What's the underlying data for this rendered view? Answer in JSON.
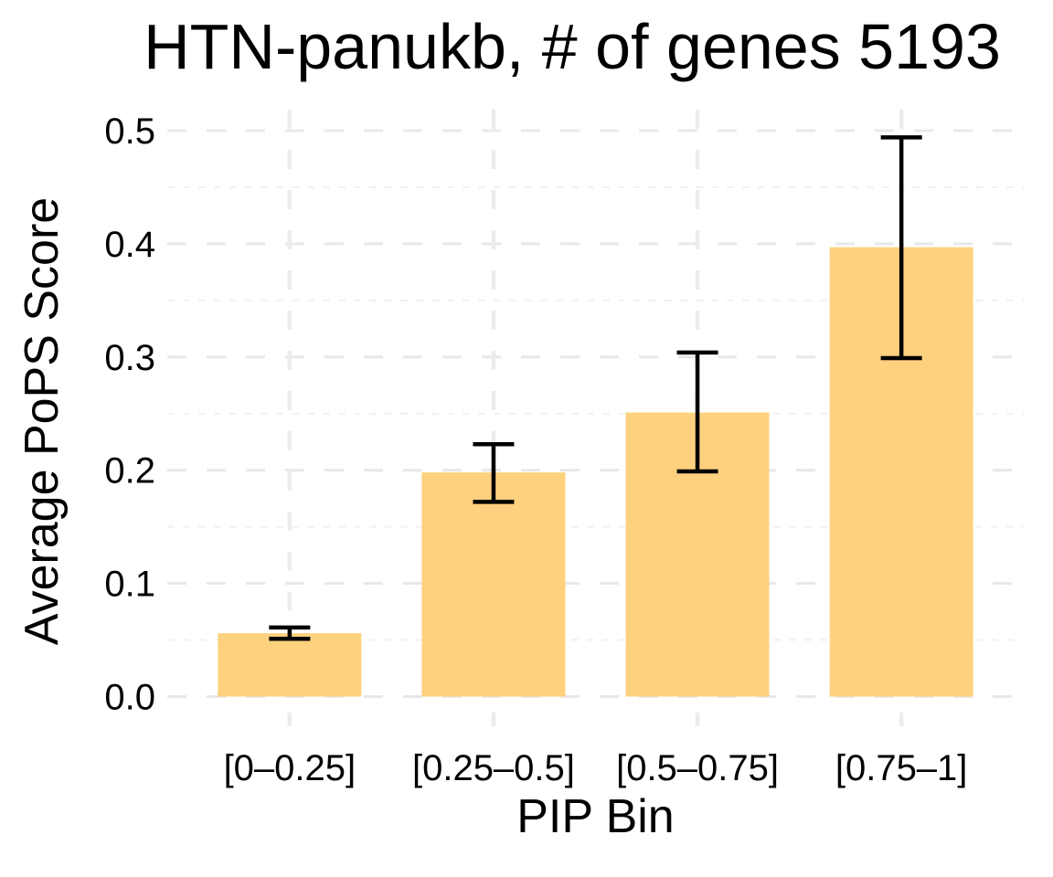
{
  "figure": {
    "trait": "HTN-panukb",
    "n_genes": "5193"
  },
  "chart_data": {
    "type": "bar",
    "title": "HTN-panukb, # of genes 5193",
    "xlabel": "PIP Bin",
    "ylabel": "Average PoPS Score",
    "categories": [
      "[0–0.25]",
      "[0.25–0.5]",
      "[0.5–0.75]",
      "[0.75–1]"
    ],
    "values": [
      0.056,
      0.198,
      0.251,
      0.397
    ],
    "error_low": [
      0.051,
      0.172,
      0.199,
      0.299
    ],
    "error_high": [
      0.061,
      0.223,
      0.304,
      0.494
    ],
    "y_tick_labels": [
      "0.0",
      "0.1",
      "0.2",
      "0.3",
      "0.4",
      "0.5"
    ],
    "y_tick_values": [
      0.0,
      0.1,
      0.2,
      0.3,
      0.4,
      0.5
    ],
    "y_minor_values": [
      0.05,
      0.15,
      0.25,
      0.35,
      0.45
    ],
    "ylim": [
      -0.03,
      0.52
    ],
    "legend": "none",
    "grid": "dashed horizontal major and minor lines, dashed vertical line at each category center",
    "colors": {
      "bar_fill": "#FDD17E",
      "error_bar": "#000000",
      "grid_major": "#E8E8E8",
      "grid_minor": "#F1F1F1",
      "grid_vertical": "#ECECEC",
      "text": "#000000",
      "background": "#FFFFFF"
    }
  }
}
